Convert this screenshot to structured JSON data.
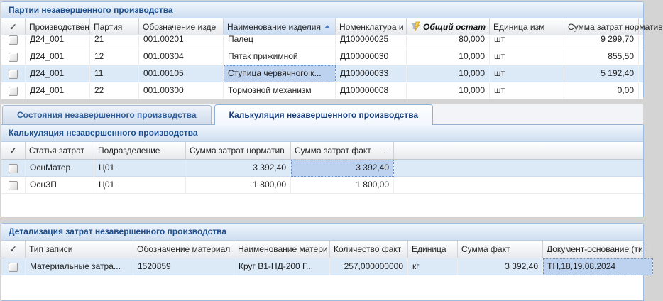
{
  "colors": {
    "panel_title_text": "#1c4f8f",
    "panel_border": "#9ebcdd",
    "row_selected_bg": "#dce9f7",
    "focus_cell_bg": "#bcd2ee",
    "sorted_header_bg": "#d7e5f6",
    "filter_icon_yellow": "#ffd24d",
    "filter_icon_gray": "#aebacb"
  },
  "icons": {
    "header_checkmark": "✓"
  },
  "top_panel": {
    "title": "Партии незавершенного производства",
    "columns": [
      {
        "key": "select",
        "label": "",
        "width": 34,
        "type": "check"
      },
      {
        "key": "prod-order",
        "label": "Производствен",
        "width": 91
      },
      {
        "key": "batch",
        "label": "Партия",
        "width": 69
      },
      {
        "key": "product-code",
        "label": "Обозначение изде",
        "width": 119
      },
      {
        "key": "product-name",
        "label": "Наименование изделия",
        "width": 158,
        "sorted": "asc"
      },
      {
        "key": "nomenclature",
        "label": "Номенклатура и",
        "width": 100
      },
      {
        "key": "total-rest",
        "label": "Общий остат",
        "width": 117,
        "filtered": true,
        "align": "right"
      },
      {
        "key": "unit",
        "label": "Единица изм",
        "width": 105
      },
      {
        "key": "cost-norm",
        "label": "Сумма затрат норматив",
        "width": 105,
        "align": "right"
      }
    ],
    "rows": [
      {
        "cells": [
          "Д24_001",
          "21",
          "001.00201",
          "Палец",
          "Д100000025",
          "80,000",
          "шт",
          "9 299,70"
        ],
        "clipped": true
      },
      {
        "cells": [
          "Д24_001",
          "12",
          "001.00304",
          "Пятак прижимной",
          "Д100000030",
          "10,000",
          "шт",
          "855,50"
        ]
      },
      {
        "cells": [
          "Д24_001",
          "11",
          "001.00105",
          "Ступица червячного к...",
          "Д100000033",
          "10,000",
          "шт",
          "5 192,40"
        ],
        "selected": true,
        "focus_col": 3
      },
      {
        "cells": [
          "Д24_001",
          "22",
          "001.00300",
          "Тормозной механизм",
          "Д100000008",
          "10,000",
          "шт",
          "0,00"
        ]
      }
    ]
  },
  "tabs": [
    {
      "label": "Состояния незавершенного производства",
      "active": false
    },
    {
      "label": "Калькуляция незавершенного производства",
      "active": true
    }
  ],
  "middle_panel": {
    "title": "Калькуляция незавершенного производства",
    "columns": [
      {
        "key": "select",
        "label": "",
        "width": 34,
        "type": "check"
      },
      {
        "key": "cost-item",
        "label": "Статья затрат",
        "width": 97
      },
      {
        "key": "department",
        "label": "Подразделение",
        "width": 129
      },
      {
        "key": "cost-norm",
        "label": "Сумма затрат норматив",
        "width": 148,
        "align": "right"
      },
      {
        "key": "cost-fact",
        "label": "Сумма затрат факт",
        "width": 145,
        "align": "right",
        "suffix": ".."
      }
    ],
    "rows": [
      {
        "cells": [
          "ОснМатер",
          "Ц01",
          "3 392,40",
          "3 392,40"
        ],
        "selected": true,
        "focus_col": 3
      },
      {
        "cells": [
          "ОснЗП",
          "Ц01",
          "1 800,00",
          "1 800,00"
        ]
      }
    ]
  },
  "bottom_panel": {
    "title": "Детализация затрат незавершенного производства",
    "columns": [
      {
        "key": "select",
        "label": "",
        "width": 34,
        "type": "check"
      },
      {
        "key": "record-type",
        "label": "Тип записи",
        "width": 152
      },
      {
        "key": "material-code",
        "label": "Обозначение материал",
        "width": 142
      },
      {
        "key": "material-name",
        "label": "Наименование матери",
        "width": 135
      },
      {
        "key": "qty-fact",
        "label": "Количество факт",
        "width": 110,
        "align": "right"
      },
      {
        "key": "unit",
        "label": "Единица",
        "width": 70
      },
      {
        "key": "sum-fact",
        "label": "Сумма факт",
        "width": 120,
        "align": "right"
      },
      {
        "key": "base-document",
        "label": "Документ-основание (ти",
        "width": 155
      }
    ],
    "rows": [
      {
        "cells": [
          "Материальные затра...",
          "1520859",
          "Круг В1-НД-200 Г...",
          "257,000000000",
          "кг",
          "3 392,40",
          "ТН,18,19.08.2024"
        ],
        "selected": true,
        "focus_col": 6
      }
    ]
  }
}
